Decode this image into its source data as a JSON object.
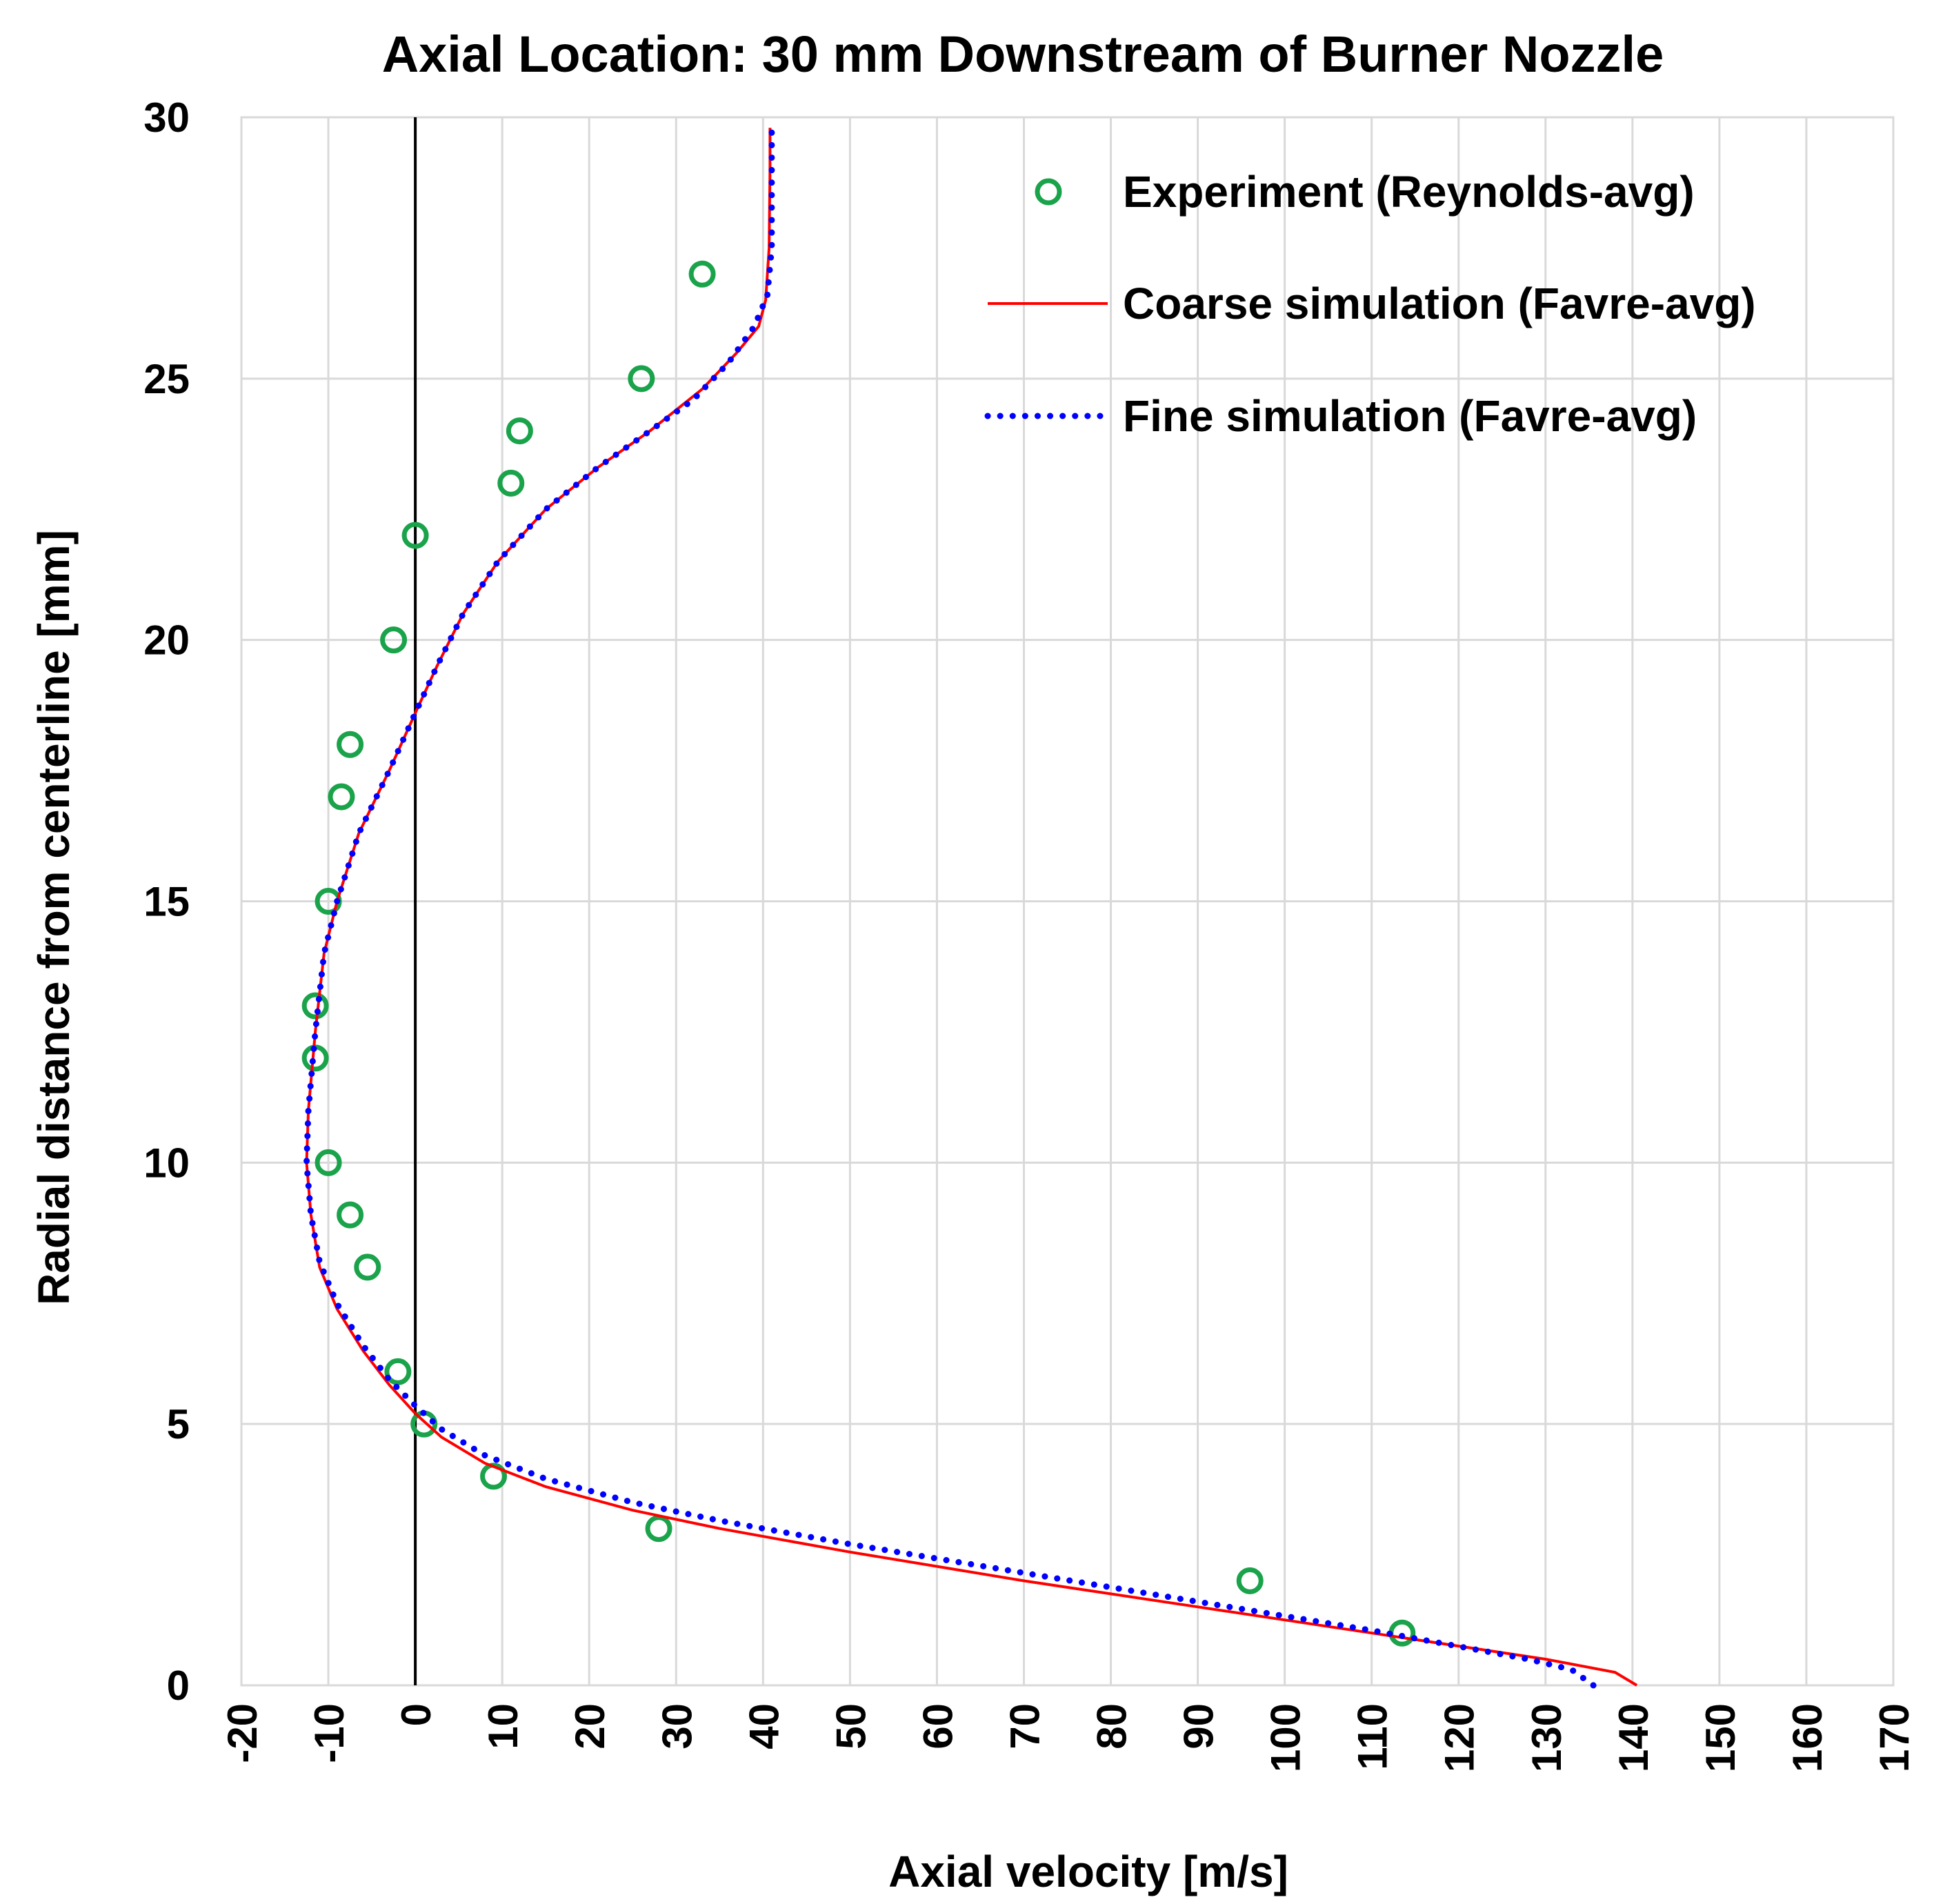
{
  "chart_data": {
    "type": "scatter",
    "title": "Axial Location: 30 mm Downstream of Burner Nozzle",
    "xlabel": "Axial velocity [m/s]",
    "ylabel": "Radial distance from centerline [mm]",
    "xlim": [
      -20,
      170
    ],
    "ylim": [
      0,
      30
    ],
    "x_ticks": [
      "-20",
      "-10",
      "0",
      "10",
      "20",
      "30",
      "40",
      "50",
      "60",
      "70",
      "80",
      "90",
      "100",
      "110",
      "120",
      "130",
      "140",
      "150",
      "160",
      "170"
    ],
    "y_ticks": [
      "0",
      "5",
      "10",
      "15",
      "20",
      "25",
      "30"
    ],
    "grid": true,
    "zero_line": true,
    "legend_position": "top-right",
    "series": [
      {
        "name": "Experiment (Reynolds-avg)",
        "style": "marker-circle-open",
        "color": "#1aa34a",
        "points": [
          [
            113.5,
            1
          ],
          [
            96,
            2
          ],
          [
            28,
            3
          ],
          [
            9,
            4
          ],
          [
            1,
            5
          ],
          [
            -2,
            6
          ],
          [
            -5.5,
            8
          ],
          [
            -7.5,
            9
          ],
          [
            -10,
            10
          ],
          [
            -11.5,
            12
          ],
          [
            -11.5,
            13
          ],
          [
            -10,
            15
          ],
          [
            -8.5,
            17
          ],
          [
            -7.5,
            18
          ],
          [
            -2.5,
            20
          ],
          [
            0,
            22
          ],
          [
            11,
            23
          ],
          [
            12,
            24
          ],
          [
            26,
            25
          ],
          [
            33,
            27
          ]
        ]
      },
      {
        "name": "Coarse simulation (Favre-avg)",
        "style": "line-solid",
        "color": "#ff0000",
        "points": [
          [
            140.5,
            0
          ],
          [
            138,
            0.25
          ],
          [
            130,
            0.5
          ],
          [
            110,
            1.0
          ],
          [
            90,
            1.5
          ],
          [
            70,
            2.0
          ],
          [
            50,
            2.55
          ],
          [
            35,
            3.0
          ],
          [
            25,
            3.35
          ],
          [
            15,
            3.8
          ],
          [
            8,
            4.25
          ],
          [
            3,
            4.75
          ],
          [
            0,
            5.2
          ],
          [
            -3,
            5.75
          ],
          [
            -6,
            6.4
          ],
          [
            -9,
            7.2
          ],
          [
            -11,
            8.0
          ],
          [
            -12,
            9.0
          ],
          [
            -12.5,
            10.0
          ],
          [
            -12.3,
            11.0
          ],
          [
            -11.5,
            12.5
          ],
          [
            -10.5,
            14.0
          ],
          [
            -9,
            15.0
          ],
          [
            -6.5,
            16.3
          ],
          [
            -3,
            17.5
          ],
          [
            0,
            18.6
          ],
          [
            2.5,
            19.5
          ],
          [
            5.5,
            20.5
          ],
          [
            9.5,
            21.5
          ],
          [
            15,
            22.5
          ],
          [
            21,
            23.3
          ],
          [
            27,
            24.0
          ],
          [
            33,
            24.8
          ],
          [
            37,
            25.5
          ],
          [
            39.5,
            26.0
          ],
          [
            40.3,
            26.5
          ],
          [
            40.7,
            27.5
          ],
          [
            40.8,
            29.0
          ],
          [
            40.8,
            29.8
          ]
        ]
      },
      {
        "name": "Fine simulation (Favre-avg)",
        "style": "line-dotted",
        "color": "#0000ff",
        "points": [
          [
            135.5,
            0
          ],
          [
            133,
            0.3
          ],
          [
            128,
            0.5
          ],
          [
            110,
            1.05
          ],
          [
            90,
            1.6
          ],
          [
            70,
            2.15
          ],
          [
            50,
            2.7
          ],
          [
            35,
            3.15
          ],
          [
            25,
            3.5
          ],
          [
            15,
            3.95
          ],
          [
            8,
            4.4
          ],
          [
            3,
            4.9
          ],
          [
            0,
            5.35
          ],
          [
            -3,
            5.85
          ],
          [
            -6,
            6.5
          ],
          [
            -9,
            7.3
          ],
          [
            -11,
            8.1
          ],
          [
            -12,
            9.0
          ],
          [
            -12.5,
            10.0
          ],
          [
            -12.3,
            11.0
          ],
          [
            -11.5,
            12.5
          ],
          [
            -10.5,
            14.0
          ],
          [
            -9,
            15.0
          ],
          [
            -6.5,
            16.3
          ],
          [
            -3,
            17.5
          ],
          [
            0,
            18.6
          ],
          [
            2.5,
            19.5
          ],
          [
            5.5,
            20.5
          ],
          [
            9.5,
            21.5
          ],
          [
            15,
            22.5
          ],
          [
            21,
            23.3
          ],
          [
            27,
            24.0
          ],
          [
            32,
            24.6
          ],
          [
            36,
            25.3
          ],
          [
            39,
            26.0
          ],
          [
            40.5,
            26.6
          ],
          [
            41,
            27.5
          ],
          [
            41,
            29.0
          ],
          [
            41,
            29.85
          ]
        ]
      }
    ]
  }
}
